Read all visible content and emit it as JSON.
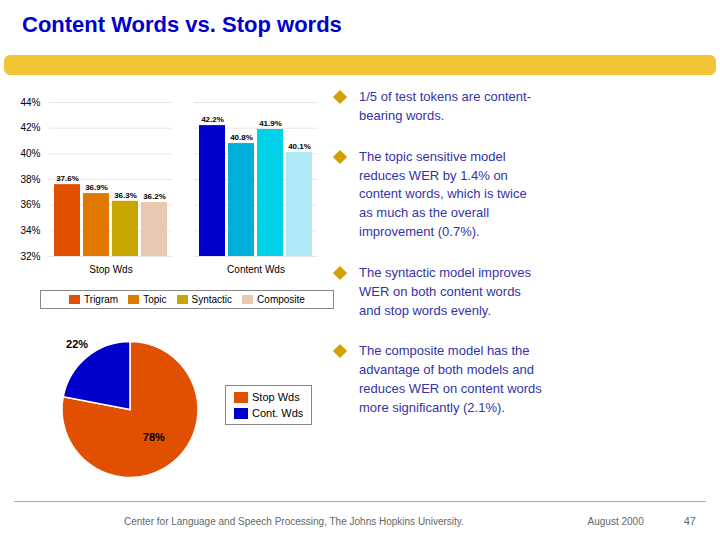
{
  "chart_data": [
    {
      "type": "bar",
      "title": "Content Words vs. Stop words",
      "categories": [
        "Stop Wds",
        "Content Wds"
      ],
      "series": [
        {
          "name": "Trigram",
          "colors": [
            "#e05000",
            "#0000cc"
          ],
          "values": [
            37.6,
            42.2
          ],
          "value_labels": [
            "37.6%",
            "42.2%"
          ]
        },
        {
          "name": "Topic",
          "colors": [
            "#e07800",
            "#00b0d8"
          ],
          "values": [
            36.9,
            40.8
          ],
          "value_labels": [
            "36.9%",
            "40.8%"
          ]
        },
        {
          "name": "Syntactic",
          "colors": [
            "#c8a800",
            "#00d0e8"
          ],
          "values": [
            36.3,
            41.9
          ],
          "value_labels": [
            "36.3%",
            "41.9%"
          ]
        },
        {
          "name": "Composite",
          "colors": [
            "#e8c8b0",
            "#b0e8f8"
          ],
          "values": [
            36.2,
            40.1
          ],
          "value_labels": [
            "36.2%",
            "40.1%"
          ]
        }
      ],
      "ylim": [
        32,
        44
      ],
      "yticks": [
        {
          "value": 32,
          "label": "32%"
        },
        {
          "value": 34,
          "label": "34%"
        },
        {
          "value": 36,
          "label": "36%"
        },
        {
          "value": 38,
          "label": "38%"
        },
        {
          "value": 40,
          "label": "40%"
        },
        {
          "value": 42,
          "label": "42%"
        },
        {
          "value": 44,
          "label": "44%"
        }
      ],
      "grid": true,
      "legend": "bottom",
      "data_labels": true,
      "annotations": [
        "1/5 of test tokens are content-\nbearing words.",
        "The topic sensitive model\nreduces WER by 1.4% on\ncontent words, which is twice\nas much as the overall\nimprovement (0.7%).",
        "The syntactic model improves\nWER on both content words\nand stop words evenly.",
        "The composite model has the\nadvantage of both models and\nreduces WER on content words\nmore significantly (2.1%)."
      ]
    },
    {
      "type": "pie",
      "categories": [
        "Stop Wds",
        "Cont. Wds"
      ],
      "values": [
        78,
        22
      ],
      "value_labels": [
        "78%",
        "22%"
      ],
      "colors": [
        "#e05000",
        "#0000cc"
      ],
      "data_labels": true,
      "legend": "right",
      "annotations": [
        "Center for Language and Speech Processing, The Johns Hopkins University.",
        "August 2000",
        "47"
      ]
    }
  ]
}
